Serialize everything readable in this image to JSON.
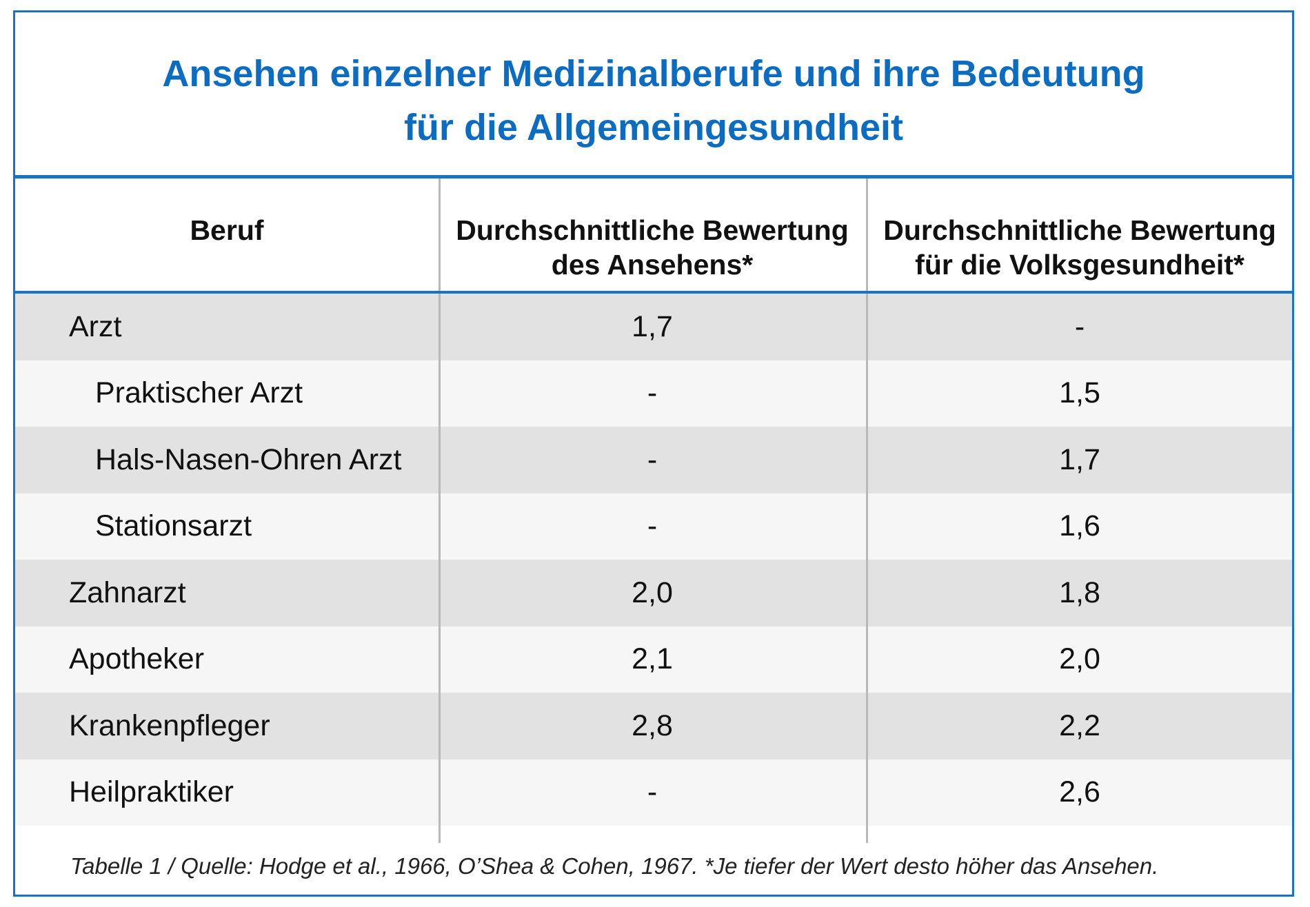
{
  "title": {
    "line1": "Ansehen einzelner Medizinalberufe und ihre Bedeutung",
    "line2": "für die Allgemeingesundheit"
  },
  "table": {
    "headers": {
      "col0": "Beruf",
      "col1_line1": "Durchschnittliche Bewertung",
      "col1_line2": "des Ansehens*",
      "col2_line1": "Durchschnittliche Bewertung",
      "col2_line2": "für die Volksgesundheit*"
    },
    "rows": [
      {
        "beruf": "Arzt",
        "ansehen": "1,7",
        "volksgesundheit": "-"
      },
      {
        "beruf": "Praktischer Arzt",
        "ansehen": "-",
        "volksgesundheit": "1,5"
      },
      {
        "beruf": "Hals-Nasen-Ohren Arzt",
        "ansehen": "-",
        "volksgesundheit": "1,7"
      },
      {
        "beruf": "Stationsarzt",
        "ansehen": "-",
        "volksgesundheit": "1,6"
      },
      {
        "beruf": "Zahnarzt",
        "ansehen": "2,0",
        "volksgesundheit": "1,8"
      },
      {
        "beruf": "Apotheker",
        "ansehen": "2,1",
        "volksgesundheit": "2,0"
      },
      {
        "beruf": "Krankenpfleger",
        "ansehen": "2,8",
        "volksgesundheit": "2,2"
      },
      {
        "beruf": "Heilpraktiker",
        "ansehen": "-",
        "volksgesundheit": "2,6"
      }
    ]
  },
  "footer": "Tabelle 1 / Quelle: Hodge et al., 1966, O’Shea & Cohen, 1967. *Je tiefer der Wert desto höher das Ansehen.",
  "colors": {
    "accent": "#1a73c1",
    "title": "#0b6cc2",
    "row_shade": "#e2e2e2",
    "row_light": "#f6f6f6"
  }
}
